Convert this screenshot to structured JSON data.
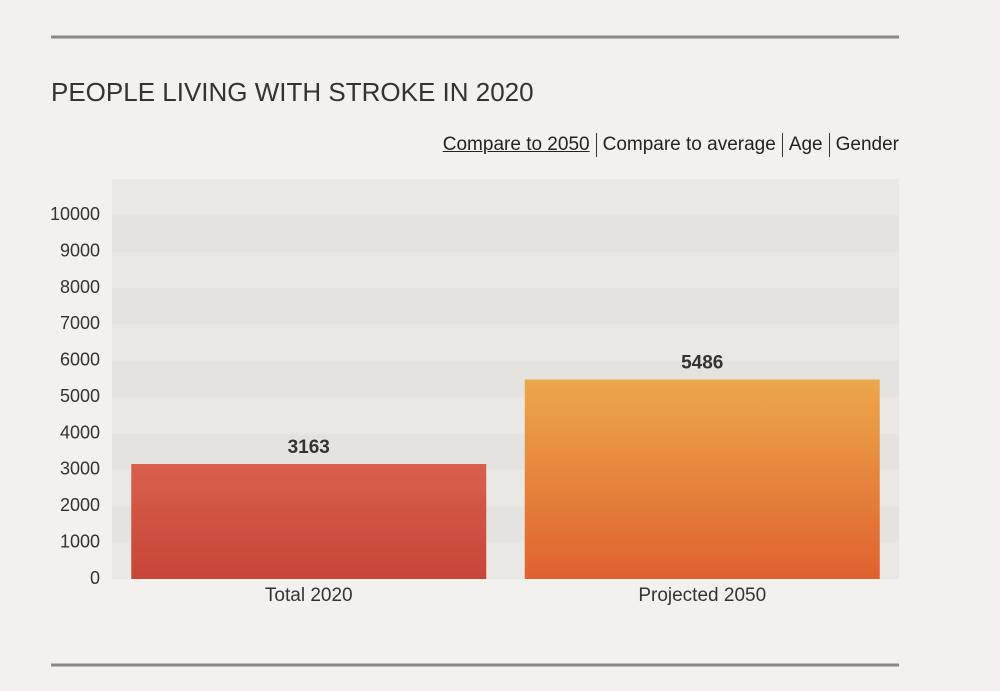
{
  "chart_data": {
    "type": "bar",
    "title": "PEOPLE LIVING WITH STROKE IN 2020",
    "categories": [
      "Total 2020",
      "Projected 2050"
    ],
    "values": [
      3163,
      5486
    ],
    "colors": [
      [
        "#d9604d",
        "#c84536"
      ],
      [
        "#eca84b",
        "#e0612f"
      ]
    ],
    "ylim": [
      0,
      11000
    ],
    "yticks": [
      0,
      1000,
      2000,
      3000,
      4000,
      5000,
      6000,
      7000,
      8000,
      9000,
      10000
    ],
    "grid": true
  },
  "controls": [
    "Compare to 2050",
    "Compare to average",
    "Age",
    "Gender"
  ]
}
